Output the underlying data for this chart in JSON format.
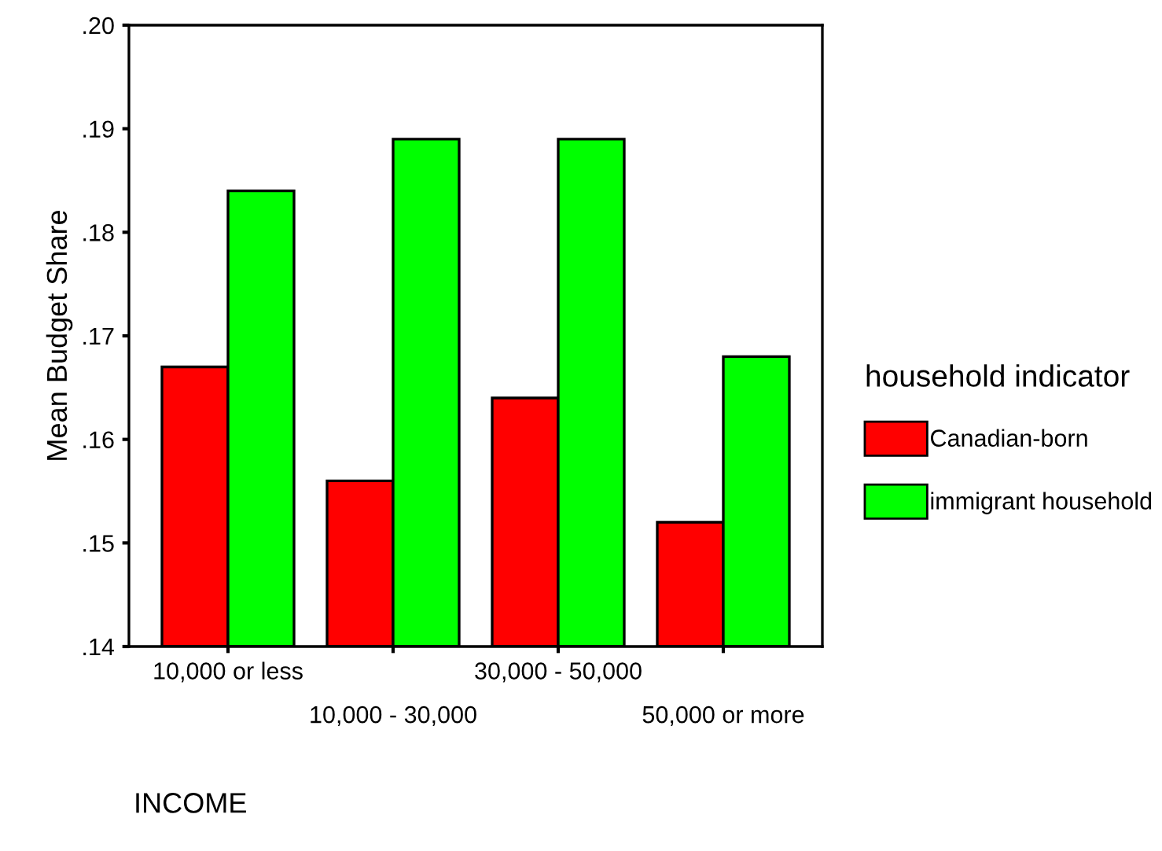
{
  "chart_data": {
    "type": "bar",
    "xlabel": "INCOME",
    "ylabel": "Mean Budget Share",
    "legend_title": "household indicator",
    "categories": [
      "10,000 or less",
      "10,000 - 30,000",
      "30,000 - 50,000",
      "50,000 or more"
    ],
    "series": [
      {
        "name": "Canadian-born",
        "color": "#ff0000",
        "values": [
          0.167,
          0.156,
          0.164,
          0.152
        ]
      },
      {
        "name": "immigrant household",
        "color": "#00ff00",
        "values": [
          0.184,
          0.189,
          0.189,
          0.168
        ]
      }
    ],
    "ylim": [
      0.14,
      0.2
    ],
    "yticks": [
      {
        "value": 0.14,
        "label": ".14"
      },
      {
        "value": 0.15,
        "label": ".15"
      },
      {
        "value": 0.16,
        "label": ".16"
      },
      {
        "value": 0.17,
        "label": ".17"
      },
      {
        "value": 0.18,
        "label": ".18"
      },
      {
        "value": 0.19,
        "label": ".19"
      },
      {
        "value": 0.2,
        "label": ".20"
      }
    ],
    "grid": false,
    "legend": "right"
  }
}
